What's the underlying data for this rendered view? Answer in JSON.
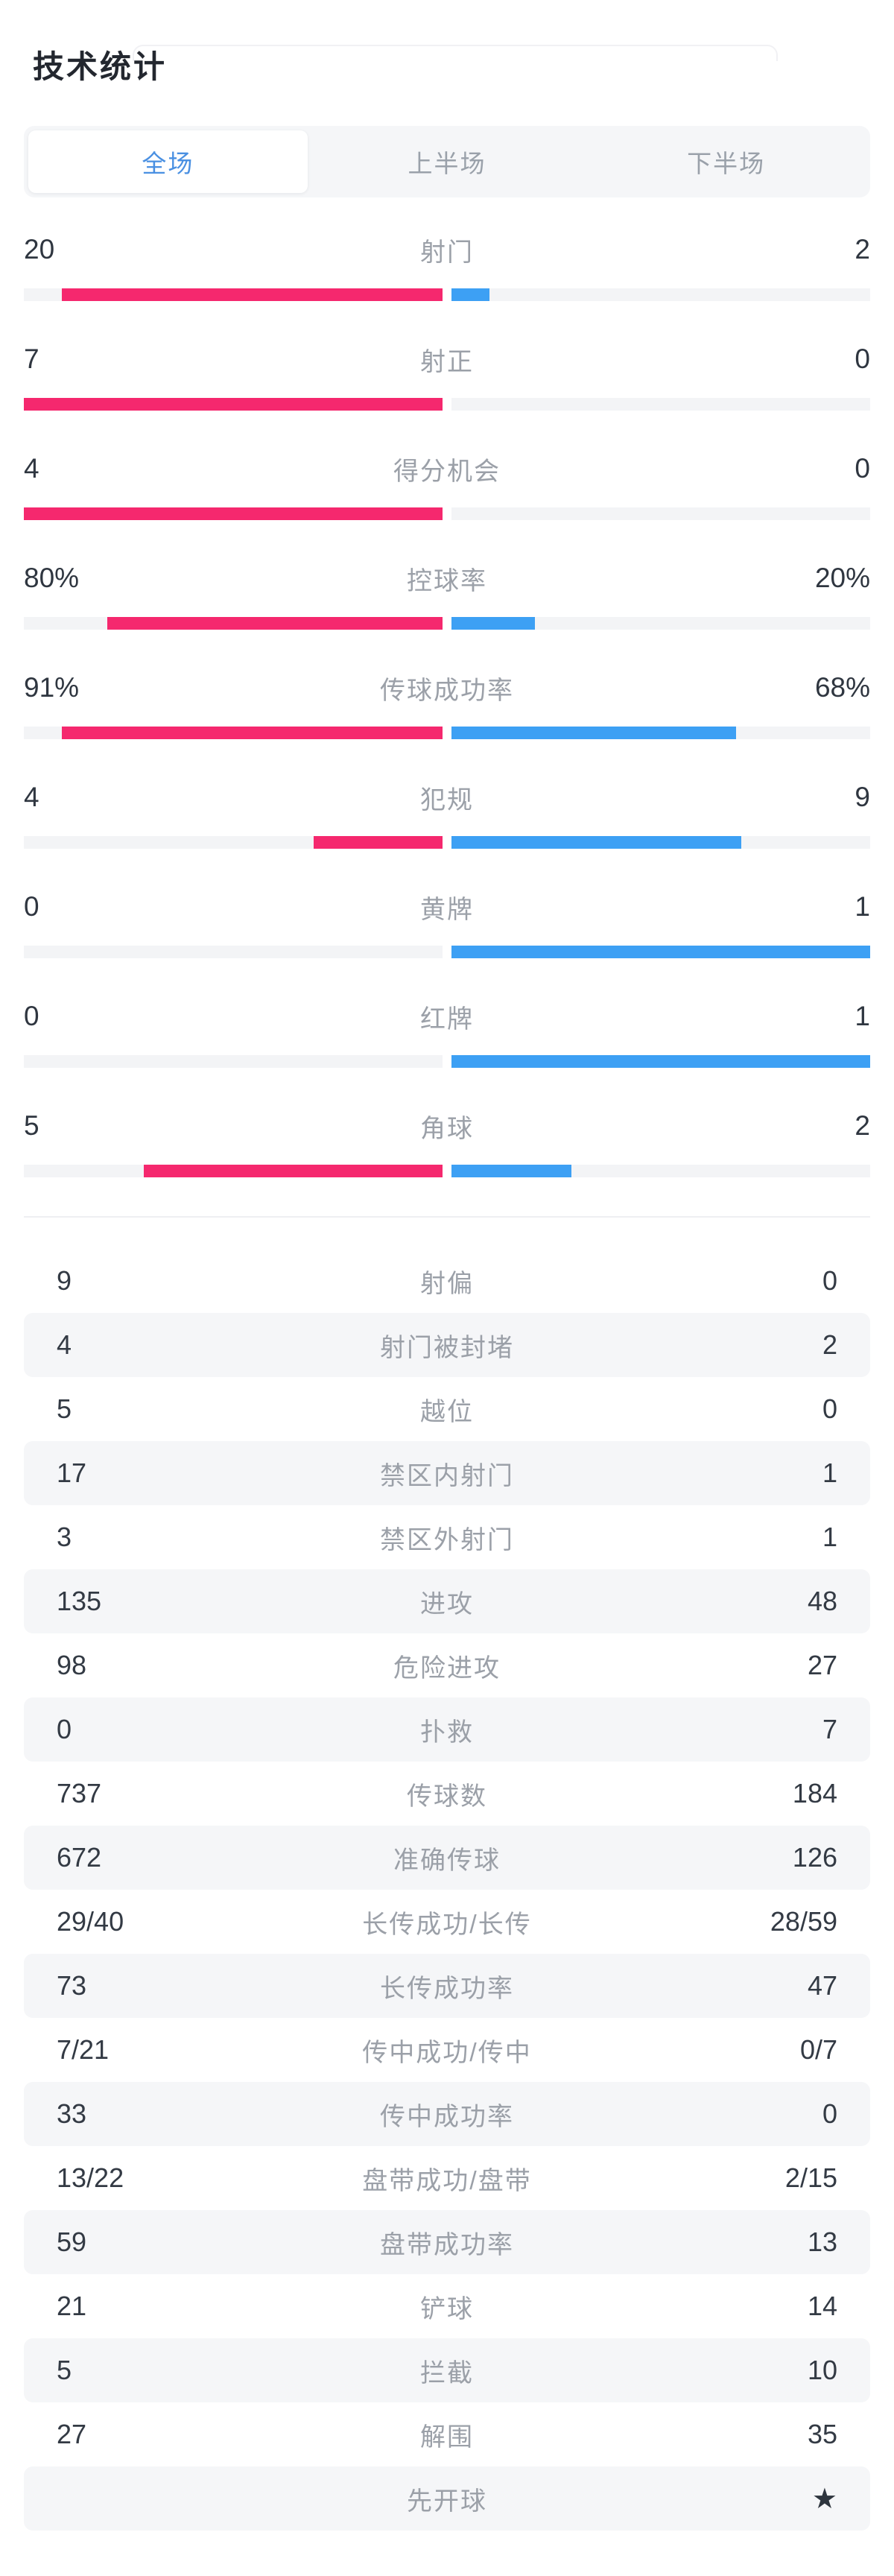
{
  "title": "技术统计",
  "tabs": [
    {
      "label": "全场",
      "active": true
    },
    {
      "label": "上半场",
      "active": false
    },
    {
      "label": "下半场",
      "active": false
    }
  ],
  "colors": {
    "home_bar": "#f5286e",
    "away_bar": "#3da0f4",
    "track": "#f3f4f6",
    "active_tab_text": "#4a90e2",
    "row_alt_bg": "#f5f6f8"
  },
  "icons": {
    "star": "★"
  },
  "bar_stats": [
    {
      "label": "射门",
      "home": "20",
      "away": "2"
    },
    {
      "label": "射正",
      "home": "7",
      "away": "0"
    },
    {
      "label": "得分机会",
      "home": "4",
      "away": "0"
    },
    {
      "label": "控球率",
      "home": "80%",
      "away": "20%"
    },
    {
      "label": "传球成功率",
      "home": "91%",
      "away": "68%"
    },
    {
      "label": "犯规",
      "home": "4",
      "away": "9"
    },
    {
      "label": "黄牌",
      "home": "0",
      "away": "1"
    },
    {
      "label": "红牌",
      "home": "0",
      "away": "1"
    },
    {
      "label": "角球",
      "home": "5",
      "away": "2"
    }
  ],
  "list_stats": [
    {
      "label": "射偏",
      "home": "9",
      "away": "0"
    },
    {
      "label": "射门被封堵",
      "home": "4",
      "away": "2"
    },
    {
      "label": "越位",
      "home": "5",
      "away": "0"
    },
    {
      "label": "禁区内射门",
      "home": "17",
      "away": "1"
    },
    {
      "label": "禁区外射门",
      "home": "3",
      "away": "1"
    },
    {
      "label": "进攻",
      "home": "135",
      "away": "48"
    },
    {
      "label": "危险进攻",
      "home": "98",
      "away": "27"
    },
    {
      "label": "扑救",
      "home": "0",
      "away": "7"
    },
    {
      "label": "传球数",
      "home": "737",
      "away": "184"
    },
    {
      "label": "准确传球",
      "home": "672",
      "away": "126"
    },
    {
      "label": "长传成功/长传",
      "home": "29/40",
      "away": "28/59"
    },
    {
      "label": "长传成功率",
      "home": "73",
      "away": "47"
    },
    {
      "label": "传中成功/传中",
      "home": "7/21",
      "away": "0/7"
    },
    {
      "label": "传中成功率",
      "home": "33",
      "away": "0"
    },
    {
      "label": "盘带成功/盘带",
      "home": "13/22",
      "away": "2/15"
    },
    {
      "label": "盘带成功率",
      "home": "59",
      "away": "13"
    },
    {
      "label": "铲球",
      "home": "21",
      "away": "14"
    },
    {
      "label": "拦截",
      "home": "5",
      "away": "10"
    },
    {
      "label": "解围",
      "home": "27",
      "away": "35"
    },
    {
      "label": "先开球",
      "home": "",
      "away": "",
      "away_icon": "star"
    }
  ]
}
